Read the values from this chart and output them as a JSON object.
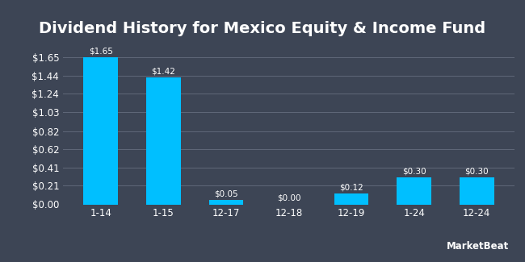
{
  "title": "Dividend History for Mexico Equity & Income Fund",
  "categories": [
    "1-14",
    "1-15",
    "12-17",
    "12-18",
    "12-19",
    "1-24",
    "12-24"
  ],
  "values": [
    1.65,
    1.42,
    0.05,
    0.0,
    0.12,
    0.3,
    0.3
  ],
  "bar_color": "#00BFFF",
  "background_color": "#3d4555",
  "text_color": "#ffffff",
  "grid_color": "#606879",
  "yticks": [
    0.0,
    0.21,
    0.41,
    0.62,
    0.82,
    1.03,
    1.24,
    1.44,
    1.65
  ],
  "ytick_labels": [
    "$0.00",
    "$0.21",
    "$0.41",
    "$0.62",
    "$0.82",
    "$1.03",
    "$1.24",
    "$1.44",
    "$1.65"
  ],
  "ylim": [
    0.0,
    1.82
  ],
  "bar_labels": [
    "$1.65",
    "$1.42",
    "$0.05",
    "$0.00",
    "$0.12",
    "$0.30",
    "$0.30"
  ],
  "title_fontsize": 14,
  "axis_fontsize": 8.5,
  "label_fontsize": 7.5,
  "watermark": "MarketBeat"
}
